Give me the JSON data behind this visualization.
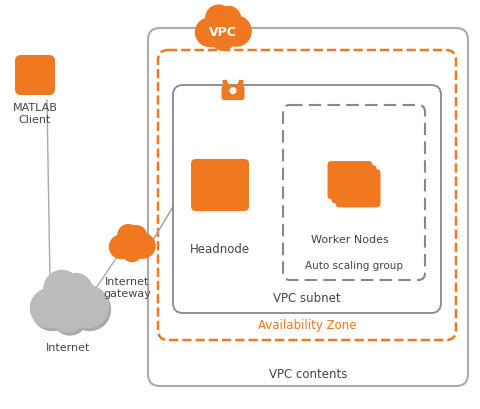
{
  "bg_color": "#ffffff",
  "orange": "#F07820",
  "gray_cloud": "#BBBBBB",
  "gray_line": "#AAAAAA",
  "box_gray": "#999999",
  "text_color": "#444444",
  "labels": {
    "vpc": "VPC",
    "vpc_contents": "VPC contents",
    "availability_zone": "Availability Zone",
    "vpc_subnet": "VPC subnet",
    "headnode": "Headnode",
    "worker_nodes": "Worker Nodes",
    "auto_scaling": "Auto scaling group",
    "matlab_client": "MATLAB\nClient",
    "internet": "Internet",
    "internet_gateway": "Internet\ngateway"
  }
}
